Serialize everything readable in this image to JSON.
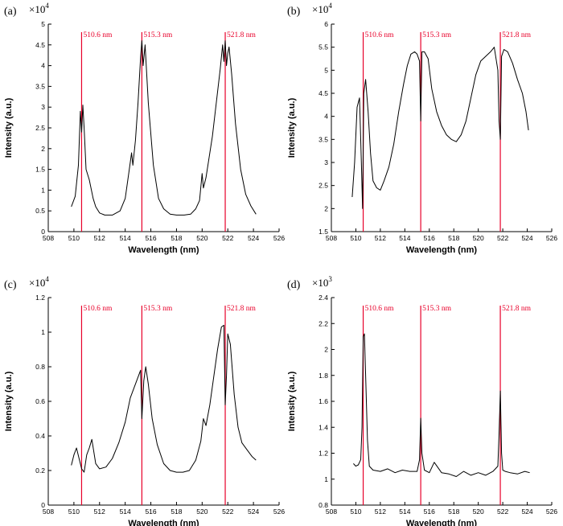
{
  "chart_data": [
    {
      "type": "line",
      "panel_label": "(a)",
      "scale_base": "×10",
      "scale_exp": "4",
      "xlabel": "Wavelength (nm)",
      "ylabel": "Intensity (a.u.)",
      "xlim": [
        508,
        526
      ],
      "ylim": [
        0,
        5
      ],
      "xticks": [
        "508",
        "510",
        "512",
        "514",
        "516",
        "518",
        "520",
        "522",
        "524",
        "526"
      ],
      "yticks": [
        "0",
        "0.5",
        "1",
        "1.5",
        "2",
        "2.5",
        "3",
        "3.5",
        "4",
        "4.5",
        "5"
      ],
      "grid": false,
      "markers": [
        {
          "x": 510.6,
          "label": "510.6 nm"
        },
        {
          "x": 515.3,
          "label": "515.3 nm"
        },
        {
          "x": 521.8,
          "label": "521.8 nm"
        }
      ],
      "series": [
        {
          "x": [
            509.8,
            510.1,
            510.35,
            510.5,
            510.6,
            510.7,
            510.8,
            510.95,
            511.2,
            511.5,
            511.7,
            512.0,
            512.4,
            513.0,
            513.6,
            514.0,
            514.3,
            514.5,
            514.6,
            514.8,
            515.0,
            515.2,
            515.3,
            515.4,
            515.55,
            515.8,
            516.2,
            516.6,
            517.0,
            517.5,
            518.0,
            518.6,
            519.1,
            519.5,
            519.8,
            520.0,
            520.1,
            520.3,
            520.5,
            520.8,
            521.1,
            521.4,
            521.6,
            521.7,
            521.8,
            521.9,
            522.0,
            522.1,
            522.3,
            522.6,
            523.0,
            523.4,
            523.8,
            524.2
          ],
          "y": [
            0.6,
            0.85,
            1.6,
            2.9,
            2.4,
            3.05,
            2.5,
            1.5,
            1.25,
            0.8,
            0.6,
            0.45,
            0.4,
            0.4,
            0.5,
            0.8,
            1.45,
            1.9,
            1.6,
            2.2,
            3.1,
            4.2,
            4.6,
            4.0,
            4.5,
            3.1,
            1.6,
            0.8,
            0.55,
            0.42,
            0.4,
            0.4,
            0.42,
            0.55,
            0.75,
            1.4,
            1.05,
            1.3,
            1.7,
            2.3,
            3.1,
            3.9,
            4.5,
            4.1,
            4.6,
            4.0,
            4.3,
            4.45,
            3.8,
            2.6,
            1.5,
            0.9,
            0.62,
            0.42
          ]
        }
      ]
    },
    {
      "type": "line",
      "panel_label": "(b)",
      "scale_base": "×10",
      "scale_exp": "4",
      "xlabel": "Wavelength (nm)",
      "ylabel": "Intensity (a.u.)",
      "xlim": [
        508,
        526
      ],
      "ylim": [
        1.5,
        6
      ],
      "xticks": [
        "508",
        "510",
        "512",
        "514",
        "516",
        "518",
        "520",
        "522",
        "524",
        "526"
      ],
      "yticks": [
        "1.5",
        "2",
        "2.5",
        "3",
        "3.5",
        "4",
        "4.5",
        "5",
        "5.5",
        "6"
      ],
      "grid": false,
      "markers": [
        {
          "x": 510.6,
          "label": "510.6 nm"
        },
        {
          "x": 515.3,
          "label": "515.3 nm"
        },
        {
          "x": 521.8,
          "label": "521.8 nm"
        }
      ],
      "series": [
        {
          "x": [
            509.7,
            509.9,
            510.1,
            510.3,
            510.45,
            510.55,
            510.65,
            510.8,
            511.0,
            511.2,
            511.4,
            511.7,
            512.0,
            512.3,
            512.7,
            513.1,
            513.5,
            513.9,
            514.2,
            514.5,
            514.8,
            515.0,
            515.2,
            515.3,
            515.4,
            515.6,
            515.9,
            516.2,
            516.6,
            517.0,
            517.4,
            517.8,
            518.2,
            518.6,
            519.0,
            519.4,
            519.8,
            520.2,
            520.6,
            521.0,
            521.3,
            521.6,
            521.7,
            521.8,
            521.9,
            522.1,
            522.4,
            522.8,
            523.2,
            523.6,
            523.9,
            524.1
          ],
          "y": [
            2.25,
            3.0,
            4.2,
            4.4,
            3.0,
            2.0,
            4.5,
            4.8,
            4.1,
            3.2,
            2.6,
            2.45,
            2.4,
            2.6,
            2.9,
            3.4,
            4.1,
            4.7,
            5.1,
            5.35,
            5.4,
            5.35,
            5.2,
            3.9,
            5.4,
            5.4,
            5.25,
            4.6,
            4.1,
            3.8,
            3.6,
            3.5,
            3.45,
            3.6,
            3.9,
            4.4,
            4.9,
            5.2,
            5.3,
            5.4,
            5.5,
            5.0,
            3.9,
            3.5,
            5.3,
            5.45,
            5.4,
            5.15,
            4.8,
            4.5,
            4.1,
            3.7
          ]
        }
      ]
    },
    {
      "type": "line",
      "panel_label": "(c)",
      "scale_base": "×10",
      "scale_exp": "4",
      "xlabel": "Wavelength (nm)",
      "ylabel": "Intensity (a.u.)",
      "xlim": [
        508,
        526
      ],
      "ylim": [
        0,
        1.2
      ],
      "xticks": [
        "508",
        "510",
        "512",
        "514",
        "516",
        "518",
        "520",
        "522",
        "524",
        "526"
      ],
      "yticks": [
        "0",
        "0.2",
        "0.4",
        "0.6",
        "0.8",
        "1",
        "1.2"
      ],
      "grid": false,
      "markers": [
        {
          "x": 510.6,
          "label": "510.6 nm"
        },
        {
          "x": 515.3,
          "label": "515.3 nm"
        },
        {
          "x": 521.8,
          "label": "521.8 nm"
        }
      ],
      "series": [
        {
          "x": [
            509.8,
            510.0,
            510.2,
            510.4,
            510.6,
            510.8,
            511.0,
            511.2,
            511.4,
            511.7,
            512.0,
            512.5,
            513.0,
            513.5,
            514.0,
            514.4,
            514.7,
            515.0,
            515.2,
            515.3,
            515.45,
            515.6,
            515.8,
            516.1,
            516.5,
            517.0,
            517.5,
            518.0,
            518.5,
            519.0,
            519.5,
            519.9,
            520.1,
            520.3,
            520.6,
            520.9,
            521.2,
            521.5,
            521.7,
            521.8,
            521.9,
            522.0,
            522.2,
            522.5,
            522.8,
            523.1,
            523.5,
            523.9,
            524.2
          ],
          "y": [
            0.23,
            0.29,
            0.33,
            0.27,
            0.21,
            0.19,
            0.29,
            0.33,
            0.38,
            0.24,
            0.21,
            0.22,
            0.27,
            0.36,
            0.48,
            0.62,
            0.68,
            0.74,
            0.78,
            0.5,
            0.72,
            0.8,
            0.7,
            0.5,
            0.35,
            0.24,
            0.2,
            0.19,
            0.19,
            0.2,
            0.26,
            0.37,
            0.5,
            0.46,
            0.58,
            0.74,
            0.9,
            1.03,
            1.04,
            0.58,
            0.75,
            0.99,
            0.93,
            0.64,
            0.45,
            0.36,
            0.32,
            0.28,
            0.26
          ]
        }
      ]
    },
    {
      "type": "line",
      "panel_label": "(d)",
      "scale_base": "×10",
      "scale_exp": "3",
      "xlabel": "Wavelength (nm)",
      "ylabel": "Intensity (a.u.)",
      "xlim": [
        508,
        526
      ],
      "ylim": [
        0.8,
        2.4
      ],
      "xticks": [
        "508",
        "510",
        "512",
        "514",
        "516",
        "518",
        "520",
        "522",
        "524",
        "526"
      ],
      "yticks": [
        "0.8",
        "1",
        "1.2",
        "1.4",
        "1.6",
        "1.8",
        "2",
        "2.2",
        "2.4"
      ],
      "grid": false,
      "markers": [
        {
          "x": 510.6,
          "label": "510.6 nm"
        },
        {
          "x": 515.3,
          "label": "515.3 nm"
        },
        {
          "x": 521.8,
          "label": "521.8 nm"
        }
      ],
      "series": [
        {
          "x": [
            509.8,
            510.0,
            510.2,
            510.4,
            510.5,
            510.6,
            510.7,
            510.8,
            510.95,
            511.1,
            511.4,
            512.0,
            512.6,
            513.2,
            513.8,
            514.4,
            515.0,
            515.2,
            515.3,
            515.4,
            515.6,
            516.0,
            516.4,
            517.0,
            517.6,
            518.2,
            518.8,
            519.4,
            520.0,
            520.6,
            521.2,
            521.6,
            521.7,
            521.8,
            521.9,
            522.0,
            522.2,
            522.6,
            523.2,
            523.8,
            524.2
          ],
          "y": [
            1.12,
            1.1,
            1.11,
            1.15,
            1.4,
            2.1,
            2.12,
            1.8,
            1.3,
            1.1,
            1.07,
            1.06,
            1.08,
            1.05,
            1.07,
            1.06,
            1.06,
            1.15,
            1.47,
            1.2,
            1.07,
            1.05,
            1.13,
            1.05,
            1.04,
            1.02,
            1.06,
            1.03,
            1.05,
            1.03,
            1.06,
            1.1,
            1.35,
            1.68,
            1.2,
            1.07,
            1.06,
            1.05,
            1.04,
            1.06,
            1.05
          ]
        }
      ]
    }
  ]
}
